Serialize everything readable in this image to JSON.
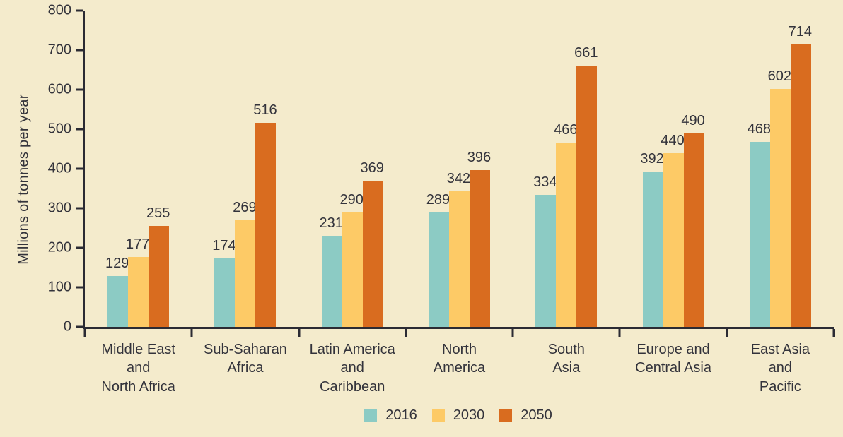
{
  "colors": {
    "background": "#f4ebcc",
    "axis": "#2b2b33",
    "text": "#33333b",
    "series_2016": "#8ccbc4",
    "series_2030": "#fdca66",
    "series_2050": "#d96c1f"
  },
  "chart_data": {
    "type": "bar",
    "title": "",
    "xlabel": "",
    "ylabel": "Millions of tonnes per year",
    "ylim": [
      0,
      800
    ],
    "ytick_step": 100,
    "yticks": [
      0,
      100,
      200,
      300,
      400,
      500,
      600,
      700,
      800
    ],
    "grid": false,
    "legend_position": "bottom",
    "categories": [
      "Middle East\nand\nNorth Africa",
      "Sub-Saharan\nAfrica",
      "Latin America\nand\nCaribbean",
      "North\nAmerica",
      "South\nAsia",
      "Europe and\nCentral Asia",
      "East Asia\nand\nPacific"
    ],
    "series": [
      {
        "name": "2016",
        "color": "#8ccbc4",
        "values": [
          129,
          174,
          231,
          289,
          334,
          392,
          468
        ]
      },
      {
        "name": "2030",
        "color": "#fdca66",
        "values": [
          177,
          269,
          290,
          342,
          466,
          440,
          602
        ]
      },
      {
        "name": "2050",
        "color": "#d96c1f",
        "values": [
          255,
          516,
          369,
          396,
          661,
          490,
          714
        ]
      }
    ]
  }
}
